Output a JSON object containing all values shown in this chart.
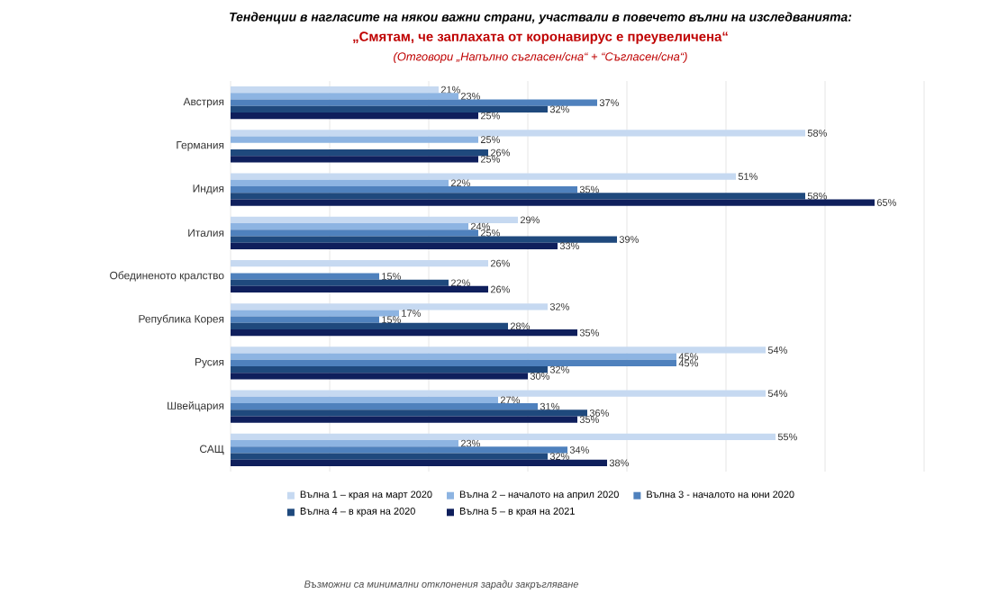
{
  "chart_data": {
    "type": "bar",
    "orientation": "horizontal",
    "title": "Тенденции в нагласите на някои важни страни, участвали в повечето вълни на изследванията:",
    "subtitle": "„Смятам, че заплахата от коронавирус е преувеличена“",
    "annotations": [
      "(Отговори „Напълно съгласен/сна“ + “Съгласен/сна“)",
      "Възможни са минимални отклонения заради закръгляване"
    ],
    "categories": [
      "Австрия",
      "Германия",
      "Индия",
      "Италия",
      "Обединеното кралство",
      "Република Корея",
      "Русия",
      "Швейцария",
      "САЩ"
    ],
    "series": [
      {
        "name": "Вълна 1 – края на март 2020",
        "color": "#c6d9f1",
        "values": [
          21,
          58,
          51,
          29,
          26,
          32,
          54,
          54,
          55
        ],
        "value_labels": [
          "21%",
          "58%",
          "51%",
          "29%",
          "26%",
          "32%",
          "54%",
          "54%",
          "55%"
        ]
      },
      {
        "name": "Вълна 2 – началото на април 2020",
        "color": "#8db4e2",
        "values": [
          23,
          25,
          22,
          24,
          null,
          17,
          45,
          27,
          23
        ],
        "value_labels": [
          "23%",
          "25%",
          "22%",
          "24%",
          null,
          "17%",
          "45%",
          "27%",
          "23%"
        ]
      },
      {
        "name": "Вълна 3 - началото на юни 2020",
        "color": "#4f81bd",
        "values": [
          37,
          null,
          35,
          25,
          15,
          15,
          45,
          31,
          34
        ],
        "value_labels": [
          "37%",
          null,
          "35%",
          "25%",
          "15%",
          "15%",
          "45%",
          "31%",
          "34%"
        ]
      },
      {
        "name": "Вълна 4 – в края на 2020",
        "color": "#1f497d",
        "values": [
          32,
          26,
          58,
          39,
          22,
          28,
          32,
          36,
          32
        ],
        "value_labels": [
          "32%",
          "26%",
          "58%",
          "39%",
          "22%",
          "28%",
          "32%",
          "36%",
          "32%"
        ]
      },
      {
        "name": "Вълна 5 – в края на 2021",
        "color": "#0f1f5c",
        "values": [
          25,
          25,
          65,
          33,
          26,
          35,
          30,
          35,
          38
        ],
        "value_labels": [
          "25%",
          "25%",
          "65%",
          "33%",
          "26%",
          "35%",
          "30%",
          "35%",
          "38%"
        ]
      }
    ],
    "xlim": [
      0,
      70
    ],
    "xticks": [
      {
        "value": 0,
        "label": null
      },
      {
        "value": 10,
        "label": null
      },
      {
        "value": 20,
        "label": null
      },
      {
        "value": 30,
        "label": null
      },
      {
        "value": 40,
        "label": null
      },
      {
        "value": 50,
        "label": null
      },
      {
        "value": 60,
        "label": null
      },
      {
        "value": 70,
        "label": null
      }
    ],
    "grid": "x",
    "legend": "bottom",
    "tick_labels": "y"
  }
}
